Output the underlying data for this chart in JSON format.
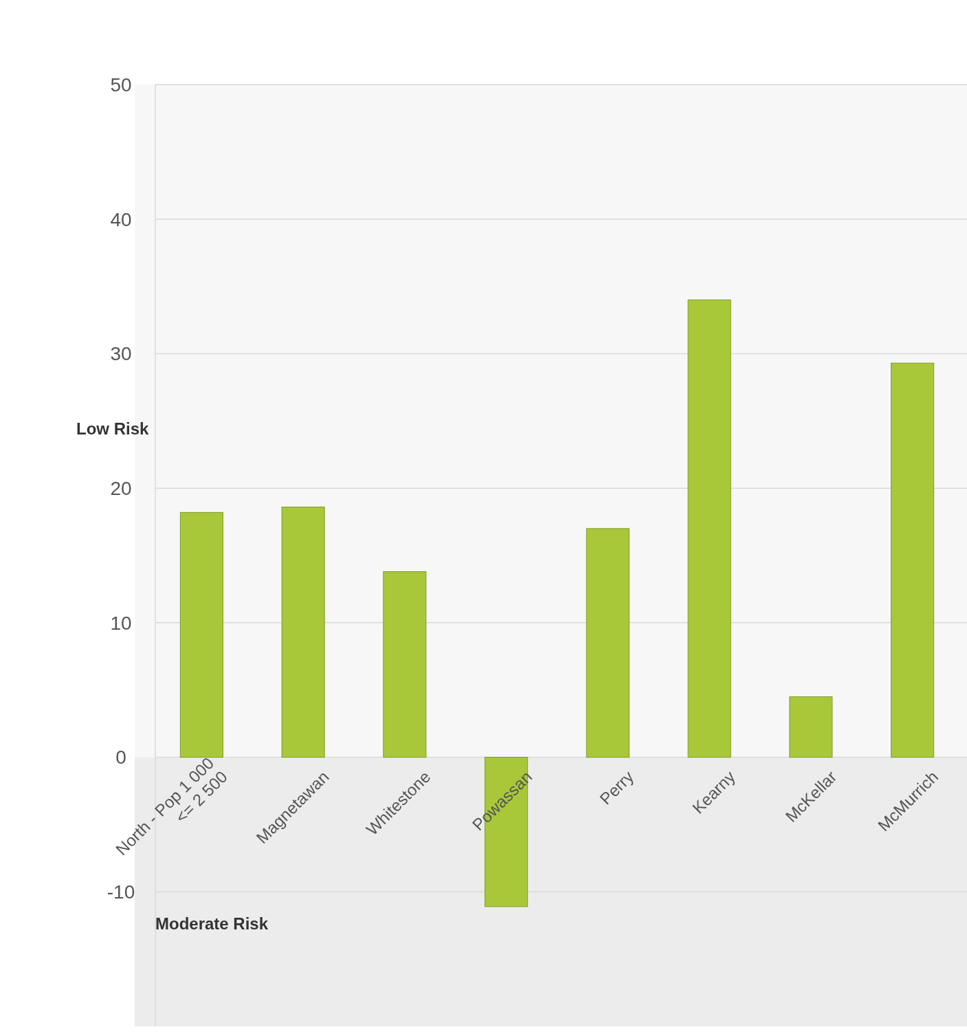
{
  "chart_data": {
    "type": "bar",
    "categories": [
      "North - Pop 1 000 <= 2 500",
      "Magnetawan",
      "Whitestone",
      "Powassan",
      "Perry",
      "Kearny",
      "McKellar",
      "McMurrich"
    ],
    "values": [
      18.2,
      18.6,
      13.8,
      -11.1,
      17.0,
      34.0,
      4.5,
      29.3
    ],
    "color": "#a8c83a",
    "ylim": [
      -20,
      50
    ],
    "yticks": [
      -10,
      0,
      10,
      20,
      30,
      40,
      50
    ],
    "grid": "y",
    "bands": [
      {
        "axis": "y",
        "from": 0,
        "to": 50,
        "label": "Low Risk",
        "color": "#f7f7f7"
      },
      {
        "axis": "y",
        "from": -20,
        "to": 0,
        "label": "Moderate Risk",
        "color": "#ececec"
      }
    ]
  }
}
